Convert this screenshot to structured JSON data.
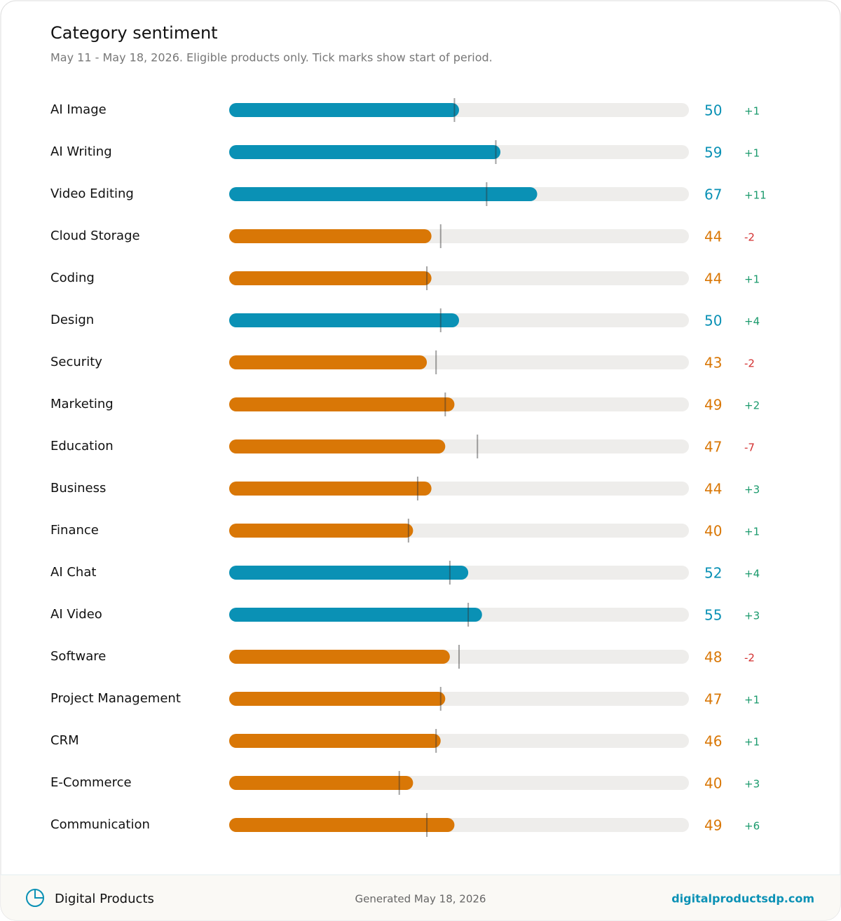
{
  "chart_data": {
    "type": "bullet",
    "title": "Category sentiment",
    "subtitle": "May 11 - May 18, 2026. Eligible products only. Tick marks show start of period.",
    "categories": [
      "AI Image",
      "AI Writing",
      "Video Editing",
      "Cloud Storage",
      "Coding",
      "Design",
      "Security",
      "Marketing",
      "Education",
      "Business",
      "Finance",
      "AI Chat",
      "AI Video",
      "Software",
      "Project Management",
      "CRM",
      "E-Commerce",
      "Communication"
    ],
    "values": [
      50,
      59,
      67,
      44,
      44,
      50,
      43,
      49,
      47,
      44,
      40,
      52,
      55,
      48,
      47,
      46,
      40,
      49
    ],
    "colors": [
      "#0a91b5",
      "#0a91b5",
      "#0a91b5",
      "#d97706",
      "#d97706",
      "#0a91b5",
      "#d97706",
      "#d97706",
      "#d97706",
      "#d97706",
      "#d97706",
      "#0a91b5",
      "#0a91b5",
      "#d97706",
      "#d97706",
      "#d97706",
      "#d97706",
      "#d97706"
    ],
    "changes": [
      1,
      1,
      11,
      -2,
      1,
      4,
      -2,
      2,
      -7,
      3,
      1,
      4,
      3,
      -2,
      1,
      1,
      3,
      6
    ],
    "change_labels": [
      "+1",
      "+1",
      "+11",
      "-2",
      "+1",
      "+4",
      "-2",
      "+2",
      "-7",
      "+3",
      "+1",
      "+4",
      "+3",
      "-2",
      "+1",
      "+1",
      "+3",
      "+6"
    ],
    "up_color": "#1a9a6c",
    "down_color": "#d32f2f",
    "track_color": "#eeedeb",
    "xlim": [
      0,
      100
    ]
  },
  "footer": {
    "brand": "Digital Products",
    "generated": "Generated May 18, 2026",
    "site": "digitalproductsdp.com"
  }
}
